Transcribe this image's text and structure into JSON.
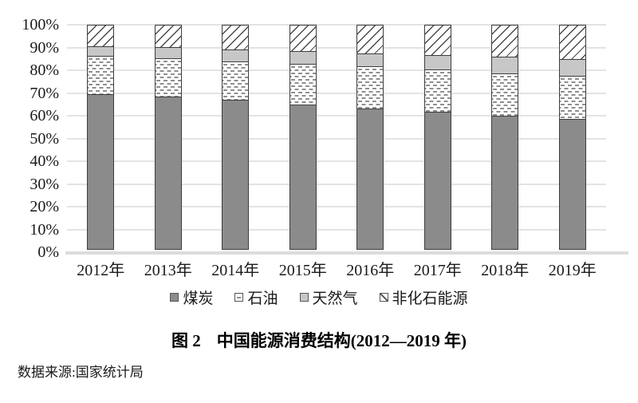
{
  "chart_data": {
    "type": "bar",
    "stacked": true,
    "orientation": "vertical",
    "title": "图 2 中国能源消费结构(2012—2019 年)",
    "categories": [
      "2012年",
      "2013年",
      "2014年",
      "2015年",
      "2016年",
      "2017年",
      "2018年",
      "2019年"
    ],
    "series": [
      {
        "name": "煤炭",
        "style": "coal",
        "pattern": "solid-dark-gray",
        "values": [
          68.5,
          67.4,
          65.8,
          63.8,
          62.2,
          60.6,
          59.0,
          57.7
        ]
      },
      {
        "name": "石油",
        "style": "oil",
        "pattern": "white-with-gray-dashes",
        "values": [
          17.0,
          17.1,
          17.3,
          18.4,
          18.7,
          18.9,
          18.9,
          19.0
        ]
      },
      {
        "name": "天然气",
        "style": "gas",
        "pattern": "solid-light-gray",
        "values": [
          4.8,
          5.3,
          5.6,
          5.8,
          6.1,
          6.9,
          7.6,
          8.0
        ]
      },
      {
        "name": "非化石能源",
        "style": "nonfossil",
        "pattern": "white-with-diagonal-hatch",
        "values": [
          9.7,
          10.2,
          11.3,
          12.0,
          13.0,
          13.6,
          14.5,
          15.3
        ]
      }
    ],
    "unit": "%",
    "ylim": [
      0,
      100
    ],
    "y_ticks": [
      "100%",
      "90%",
      "80%",
      "70%",
      "60%",
      "50%",
      "40%",
      "30%",
      "20%",
      "10%",
      "0%"
    ],
    "grid": true,
    "legend_position": "bottom"
  },
  "caption": {
    "prefix": "图 2",
    "text": "中国能源消费结构(2012—2019 年)"
  },
  "source": "数据来源:国家统计局",
  "colors": {
    "coal_fill": "#8b8b8b",
    "gas_fill": "#c7c7c7",
    "oil_dash": "#8f8f8f",
    "hatch_line": "#4a4a4a",
    "segment_border": "#3d3d3d",
    "gridline": "#e3e3e3",
    "axis_line": "#dcdcdc",
    "text": "#1a1a1a",
    "background": "#ffffff"
  }
}
